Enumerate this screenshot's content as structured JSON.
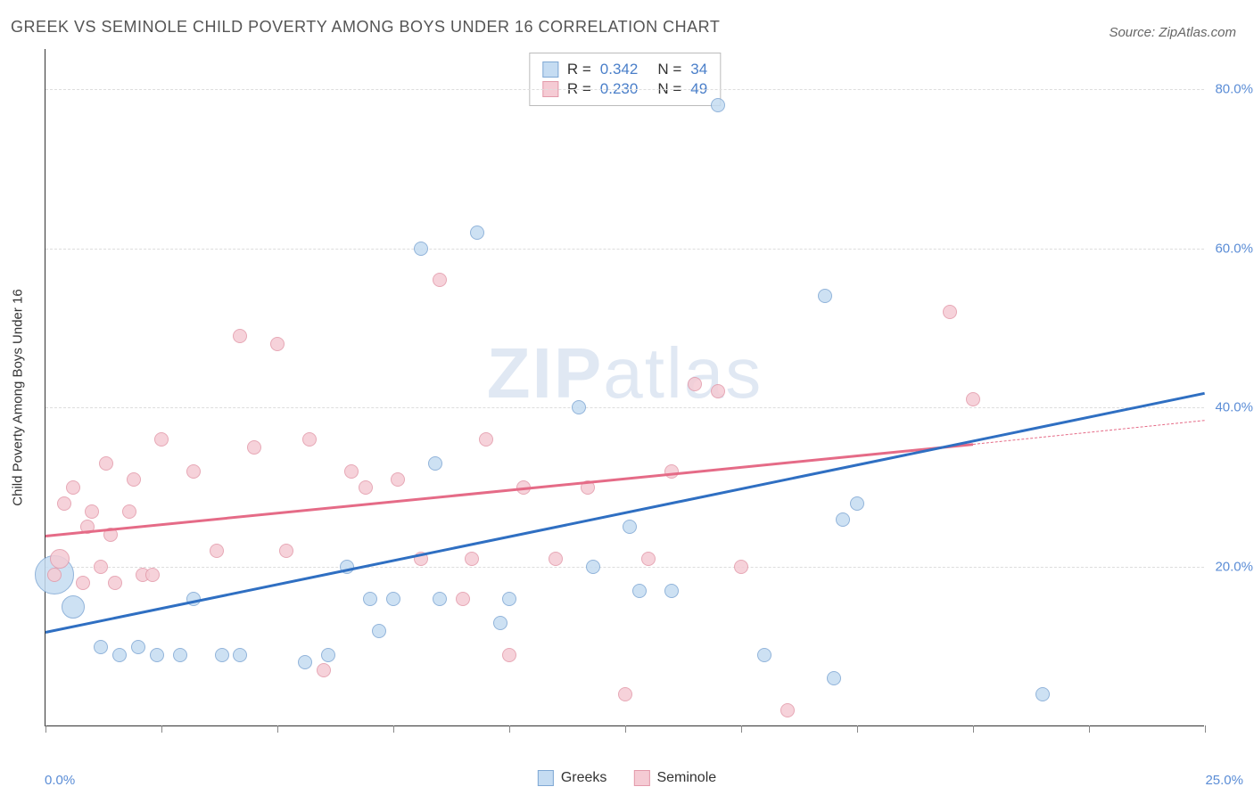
{
  "title": "GREEK VS SEMINOLE CHILD POVERTY AMONG BOYS UNDER 16 CORRELATION CHART",
  "source": "Source: ZipAtlas.com",
  "ylabel": "Child Poverty Among Boys Under 16",
  "watermark_bold": "ZIP",
  "watermark_rest": "atlas",
  "chart": {
    "type": "scatter",
    "xlim": [
      0,
      25
    ],
    "ylim": [
      0,
      85
    ],
    "xtick_label_min": "0.0%",
    "xtick_label_max": "25.0%",
    "xticks": [
      0,
      2.5,
      5,
      7.5,
      10,
      12.5,
      15,
      17.5,
      20,
      22.5,
      25
    ],
    "ytick_labels": [
      {
        "v": 20,
        "label": "20.0%"
      },
      {
        "v": 40,
        "label": "40.0%"
      },
      {
        "v": 60,
        "label": "60.0%"
      },
      {
        "v": 80,
        "label": "80.0%"
      }
    ],
    "background_color": "#ffffff",
    "grid_color": "#dddddd",
    "axis_color": "#333333",
    "tick_label_color": "#5b8dd6",
    "series": [
      {
        "name": "Greeks",
        "fill": "#c5dcf2",
        "stroke": "#7fa8d4",
        "line_color": "#2f6fc2",
        "R": "0.342",
        "N": "34",
        "trend": {
          "x1": 0,
          "y1": 12,
          "x2": 25,
          "y2": 42
        },
        "points": [
          {
            "x": 0.2,
            "y": 19,
            "r": 22
          },
          {
            "x": 0.6,
            "y": 15,
            "r": 13
          },
          {
            "x": 1.2,
            "y": 10,
            "r": 8
          },
          {
            "x": 1.6,
            "y": 9,
            "r": 8
          },
          {
            "x": 2.0,
            "y": 10,
            "r": 8
          },
          {
            "x": 2.4,
            "y": 9,
            "r": 8
          },
          {
            "x": 2.9,
            "y": 9,
            "r": 8
          },
          {
            "x": 3.2,
            "y": 16,
            "r": 8
          },
          {
            "x": 3.8,
            "y": 9,
            "r": 8
          },
          {
            "x": 4.2,
            "y": 9,
            "r": 8
          },
          {
            "x": 5.6,
            "y": 8,
            "r": 8
          },
          {
            "x": 6.1,
            "y": 9,
            "r": 8
          },
          {
            "x": 6.5,
            "y": 20,
            "r": 8
          },
          {
            "x": 7.0,
            "y": 16,
            "r": 8
          },
          {
            "x": 7.2,
            "y": 12,
            "r": 8
          },
          {
            "x": 7.5,
            "y": 16,
            "r": 8
          },
          {
            "x": 8.1,
            "y": 60,
            "r": 8
          },
          {
            "x": 8.4,
            "y": 33,
            "r": 8
          },
          {
            "x": 8.5,
            "y": 16,
            "r": 8
          },
          {
            "x": 9.3,
            "y": 62,
            "r": 8
          },
          {
            "x": 9.8,
            "y": 13,
            "r": 8
          },
          {
            "x": 10.0,
            "y": 16,
            "r": 8
          },
          {
            "x": 11.5,
            "y": 40,
            "r": 8
          },
          {
            "x": 11.8,
            "y": 20,
            "r": 8
          },
          {
            "x": 12.6,
            "y": 25,
            "r": 8
          },
          {
            "x": 12.8,
            "y": 17,
            "r": 8
          },
          {
            "x": 13.5,
            "y": 17,
            "r": 8
          },
          {
            "x": 14.5,
            "y": 78,
            "r": 8
          },
          {
            "x": 15.5,
            "y": 9,
            "r": 8
          },
          {
            "x": 16.8,
            "y": 54,
            "r": 8
          },
          {
            "x": 17.0,
            "y": 6,
            "r": 8
          },
          {
            "x": 17.2,
            "y": 26,
            "r": 8
          },
          {
            "x": 17.5,
            "y": 28,
            "r": 8
          },
          {
            "x": 21.5,
            "y": 4,
            "r": 8
          }
        ]
      },
      {
        "name": "Seminole",
        "fill": "#f5cbd4",
        "stroke": "#e39aaa",
        "line_color": "#e56b87",
        "R": "0.230",
        "N": "49",
        "trend": {
          "x1": 0,
          "y1": 24,
          "x2": 20,
          "y2": 35.5
        },
        "trend_dash": {
          "x1": 20,
          "y1": 35.5,
          "x2": 25,
          "y2": 38.5
        },
        "points": [
          {
            "x": 0.3,
            "y": 21,
            "r": 11
          },
          {
            "x": 0.2,
            "y": 19,
            "r": 8
          },
          {
            "x": 0.4,
            "y": 28,
            "r": 8
          },
          {
            "x": 0.6,
            "y": 30,
            "r": 8
          },
          {
            "x": 0.8,
            "y": 18,
            "r": 8
          },
          {
            "x": 0.9,
            "y": 25,
            "r": 8
          },
          {
            "x": 1.0,
            "y": 27,
            "r": 8
          },
          {
            "x": 1.2,
            "y": 20,
            "r": 8
          },
          {
            "x": 1.3,
            "y": 33,
            "r": 8
          },
          {
            "x": 1.4,
            "y": 24,
            "r": 8
          },
          {
            "x": 1.5,
            "y": 18,
            "r": 8
          },
          {
            "x": 1.8,
            "y": 27,
            "r": 8
          },
          {
            "x": 1.9,
            "y": 31,
            "r": 8
          },
          {
            "x": 2.1,
            "y": 19,
            "r": 8
          },
          {
            "x": 2.3,
            "y": 19,
            "r": 8
          },
          {
            "x": 2.5,
            "y": 36,
            "r": 8
          },
          {
            "x": 3.2,
            "y": 32,
            "r": 8
          },
          {
            "x": 3.7,
            "y": 22,
            "r": 8
          },
          {
            "x": 4.2,
            "y": 49,
            "r": 8
          },
          {
            "x": 4.5,
            "y": 35,
            "r": 8
          },
          {
            "x": 5.0,
            "y": 48,
            "r": 8
          },
          {
            "x": 5.2,
            "y": 22,
            "r": 8
          },
          {
            "x": 5.7,
            "y": 36,
            "r": 8
          },
          {
            "x": 6.0,
            "y": 7,
            "r": 8
          },
          {
            "x": 6.6,
            "y": 32,
            "r": 8
          },
          {
            "x": 6.9,
            "y": 30,
            "r": 8
          },
          {
            "x": 7.6,
            "y": 31,
            "r": 8
          },
          {
            "x": 8.1,
            "y": 21,
            "r": 8
          },
          {
            "x": 8.5,
            "y": 56,
            "r": 8
          },
          {
            "x": 9.0,
            "y": 16,
            "r": 8
          },
          {
            "x": 9.2,
            "y": 21,
            "r": 8
          },
          {
            "x": 9.5,
            "y": 36,
            "r": 8
          },
          {
            "x": 10.0,
            "y": 9,
            "r": 8
          },
          {
            "x": 10.3,
            "y": 30,
            "r": 8
          },
          {
            "x": 11.0,
            "y": 21,
            "r": 8
          },
          {
            "x": 11.7,
            "y": 30,
            "r": 8
          },
          {
            "x": 12.5,
            "y": 4,
            "r": 8
          },
          {
            "x": 13.0,
            "y": 21,
            "r": 8
          },
          {
            "x": 13.5,
            "y": 32,
            "r": 8
          },
          {
            "x": 14.0,
            "y": 43,
            "r": 8
          },
          {
            "x": 14.5,
            "y": 42,
            "r": 8
          },
          {
            "x": 15.0,
            "y": 20,
            "r": 8
          },
          {
            "x": 16.0,
            "y": 2,
            "r": 8
          },
          {
            "x": 19.5,
            "y": 52,
            "r": 8
          },
          {
            "x": 20.0,
            "y": 41,
            "r": 8
          }
        ]
      }
    ]
  },
  "legend_bottom": [
    {
      "label": "Greeks",
      "fill": "#c5dcf2",
      "stroke": "#7fa8d4"
    },
    {
      "label": "Seminole",
      "fill": "#f5cbd4",
      "stroke": "#e39aaa"
    }
  ]
}
